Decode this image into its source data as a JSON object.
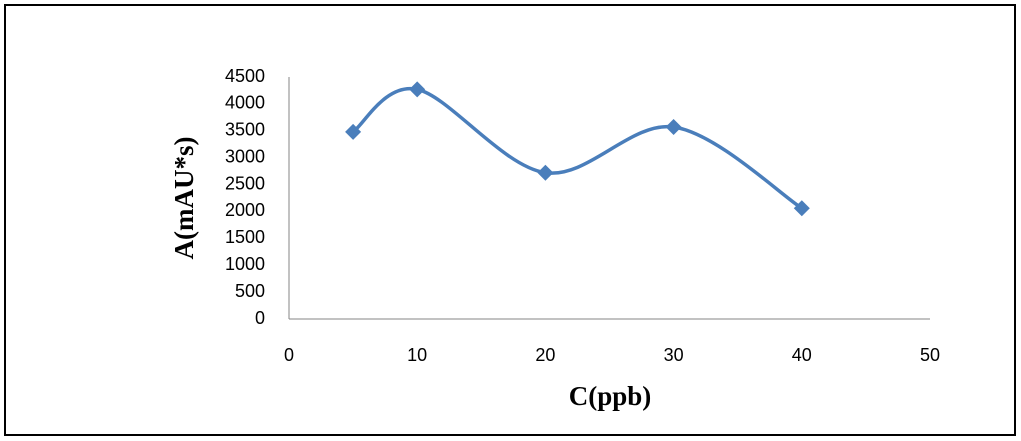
{
  "chart_data": {
    "type": "scatter",
    "x_label": "C(ppb)",
    "y_label": "A(mAU*s)",
    "series": [
      {
        "name": "A",
        "color": "#4a7ebb",
        "x": [
          5,
          10,
          20,
          30,
          40
        ],
        "values": [
          3480,
          4270,
          2720,
          3570,
          2060
        ]
      }
    ],
    "xlim": [
      0,
      50
    ],
    "xticks": [
      0,
      10,
      20,
      30,
      40,
      50
    ],
    "ylim": [
      0,
      4500
    ],
    "yticks": [
      0,
      500,
      1000,
      1500,
      2000,
      2500,
      3000,
      3500,
      4000,
      4500
    ],
    "grid": false,
    "smooth": true,
    "marker": "diamond"
  }
}
